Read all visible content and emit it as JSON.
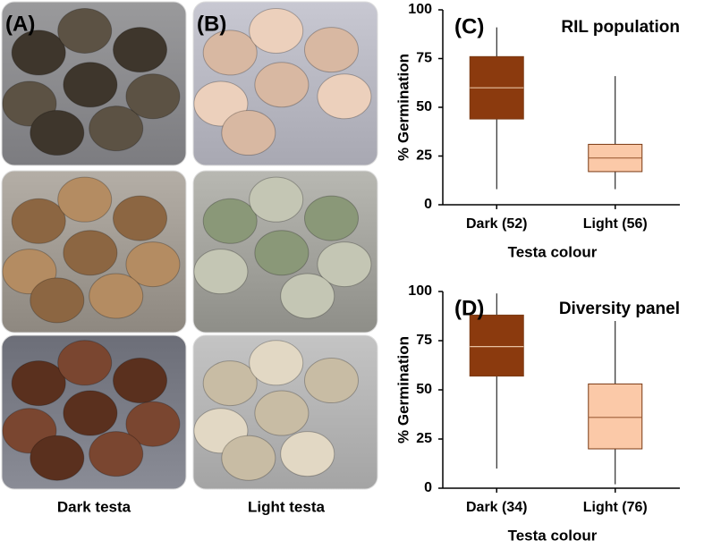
{
  "figure": {
    "photo_panels": [
      {
        "panel": "(A)",
        "caption": "Dark testa"
      },
      {
        "panel": "(B)",
        "caption": "Light testa"
      }
    ]
  },
  "chart_data": [
    {
      "type": "box",
      "panel": "(C)",
      "title": "RIL population",
      "x_label": "Testa colour",
      "y_label": "% Germination",
      "categories": [
        "Dark (52)",
        "Light (56)"
      ],
      "colors": [
        "#8b3a0e",
        "#fbc9a8"
      ],
      "min": [
        8,
        8
      ],
      "q1": [
        44,
        17
      ],
      "median": [
        60,
        24
      ],
      "q3": [
        76,
        31
      ],
      "max": [
        91,
        66
      ],
      "ylim": [
        0,
        100
      ],
      "yticks": [
        0,
        25,
        50,
        75,
        100
      ]
    },
    {
      "type": "box",
      "panel": "(D)",
      "title": "Diversity panel",
      "x_label": "Testa colour",
      "y_label": "% Germination",
      "categories": [
        "Dark (34)",
        "Light (76)"
      ],
      "colors": [
        "#8b3a0e",
        "#fbc9a8"
      ],
      "min": [
        10,
        2
      ],
      "q1": [
        57,
        20
      ],
      "median": [
        72,
        36
      ],
      "q3": [
        88,
        53
      ],
      "max": [
        99,
        85
      ],
      "ylim": [
        0,
        100
      ],
      "yticks": [
        0,
        25,
        50,
        75,
        100
      ]
    }
  ]
}
